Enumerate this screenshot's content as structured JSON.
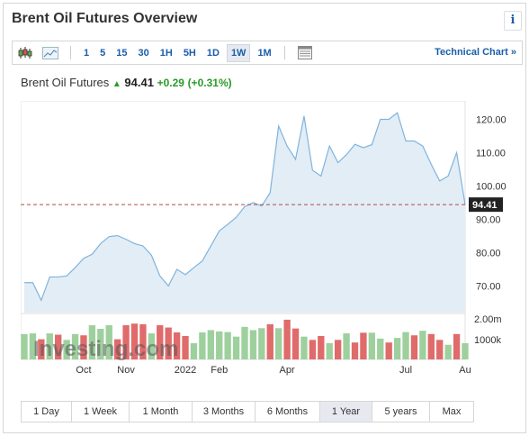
{
  "header": {
    "title": "Brent Oil Futures Overview",
    "info_label": "i"
  },
  "toolbar": {
    "intervals": [
      "1",
      "5",
      "15",
      "30",
      "1H",
      "5H",
      "1D",
      "1W",
      "1M"
    ],
    "active_interval": "1W",
    "technical_link": "Technical Chart »"
  },
  "quote": {
    "name": "Brent Oil Futures",
    "price": "94.41",
    "change": "+0.29",
    "change_pct": "(+0.31%)"
  },
  "chart_data": {
    "type": "area",
    "price_series": [
      71.0,
      71.0,
      65.7,
      72.7,
      72.7,
      73.0,
      75.5,
      78.3,
      79.5,
      82.7,
      84.8,
      85.1,
      84.0,
      82.7,
      82.0,
      79.2,
      73.0,
      70.0,
      75.0,
      73.4,
      75.5,
      77.5,
      82.0,
      86.5,
      88.5,
      90.6,
      93.8,
      95.0,
      94.0,
      98.0,
      118.0,
      112.0,
      108.0,
      121.0,
      104.7,
      103.0,
      112.0,
      107.0,
      109.4,
      112.5,
      111.5,
      112.4,
      120.0,
      120.0,
      122.0,
      113.5,
      113.5,
      112.0,
      106.5,
      101.5,
      103.0,
      110.0,
      94.41
    ],
    "volume_series": [
      0.78,
      0.8,
      0.62,
      0.8,
      0.76,
      0.6,
      0.78,
      0.74,
      1.05,
      0.94,
      1.05,
      0.62,
      1.05,
      1.1,
      1.08,
      0.8,
      1.05,
      0.98,
      0.83,
      0.72,
      0.5,
      0.83,
      0.9,
      0.86,
      0.84,
      0.7,
      1.0,
      0.9,
      0.96,
      1.08,
      0.96,
      1.22,
      0.95,
      0.7,
      0.6,
      0.72,
      0.5,
      0.6,
      0.8,
      0.52,
      0.82,
      0.82,
      0.64,
      0.52,
      0.66,
      0.84,
      0.74,
      0.88,
      0.78,
      0.6,
      0.45,
      0.78,
      0.5
    ],
    "volume_colors": [
      "g",
      "g",
      "r",
      "g",
      "r",
      "g",
      "g",
      "r",
      "g",
      "g",
      "g",
      "r",
      "r",
      "r",
      "r",
      "g",
      "r",
      "r",
      "r",
      "r",
      "g",
      "g",
      "g",
      "g",
      "g",
      "g",
      "g",
      "g",
      "g",
      "r",
      "g",
      "r",
      "r",
      "g",
      "r",
      "r",
      "g",
      "r",
      "g",
      "r",
      "r",
      "g",
      "g",
      "r",
      "g",
      "g",
      "r",
      "g",
      "r",
      "r",
      "g",
      "r",
      "g"
    ],
    "last_price": 94.41,
    "y_ticks": [
      "120.00",
      "110.00",
      "100.00",
      "90.00",
      "80.00",
      "70.00"
    ],
    "y_tick_values": [
      120,
      110,
      100,
      90,
      80,
      70
    ],
    "ylim": [
      62,
      125
    ],
    "volume_ticks": [
      "2.00m",
      "1000k"
    ],
    "x_labels": [
      "Oct",
      "Nov",
      "2022",
      "Feb",
      "Apr",
      "Jul",
      "Au"
    ],
    "x_label_index": [
      7,
      12,
      19,
      23,
      31,
      45,
      52
    ],
    "watermark": "Investing.com",
    "colors": {
      "line": "#7fb4dd",
      "area": "#e3edf6",
      "up": "#9ed09e",
      "down": "#e06b6b",
      "ref": "#b04a4a"
    }
  },
  "timeframes": [
    "1 Day",
    "1 Week",
    "1 Month",
    "3 Months",
    "6 Months",
    "1 Year",
    "5 years",
    "Max"
  ],
  "active_timeframe": "1 Year"
}
